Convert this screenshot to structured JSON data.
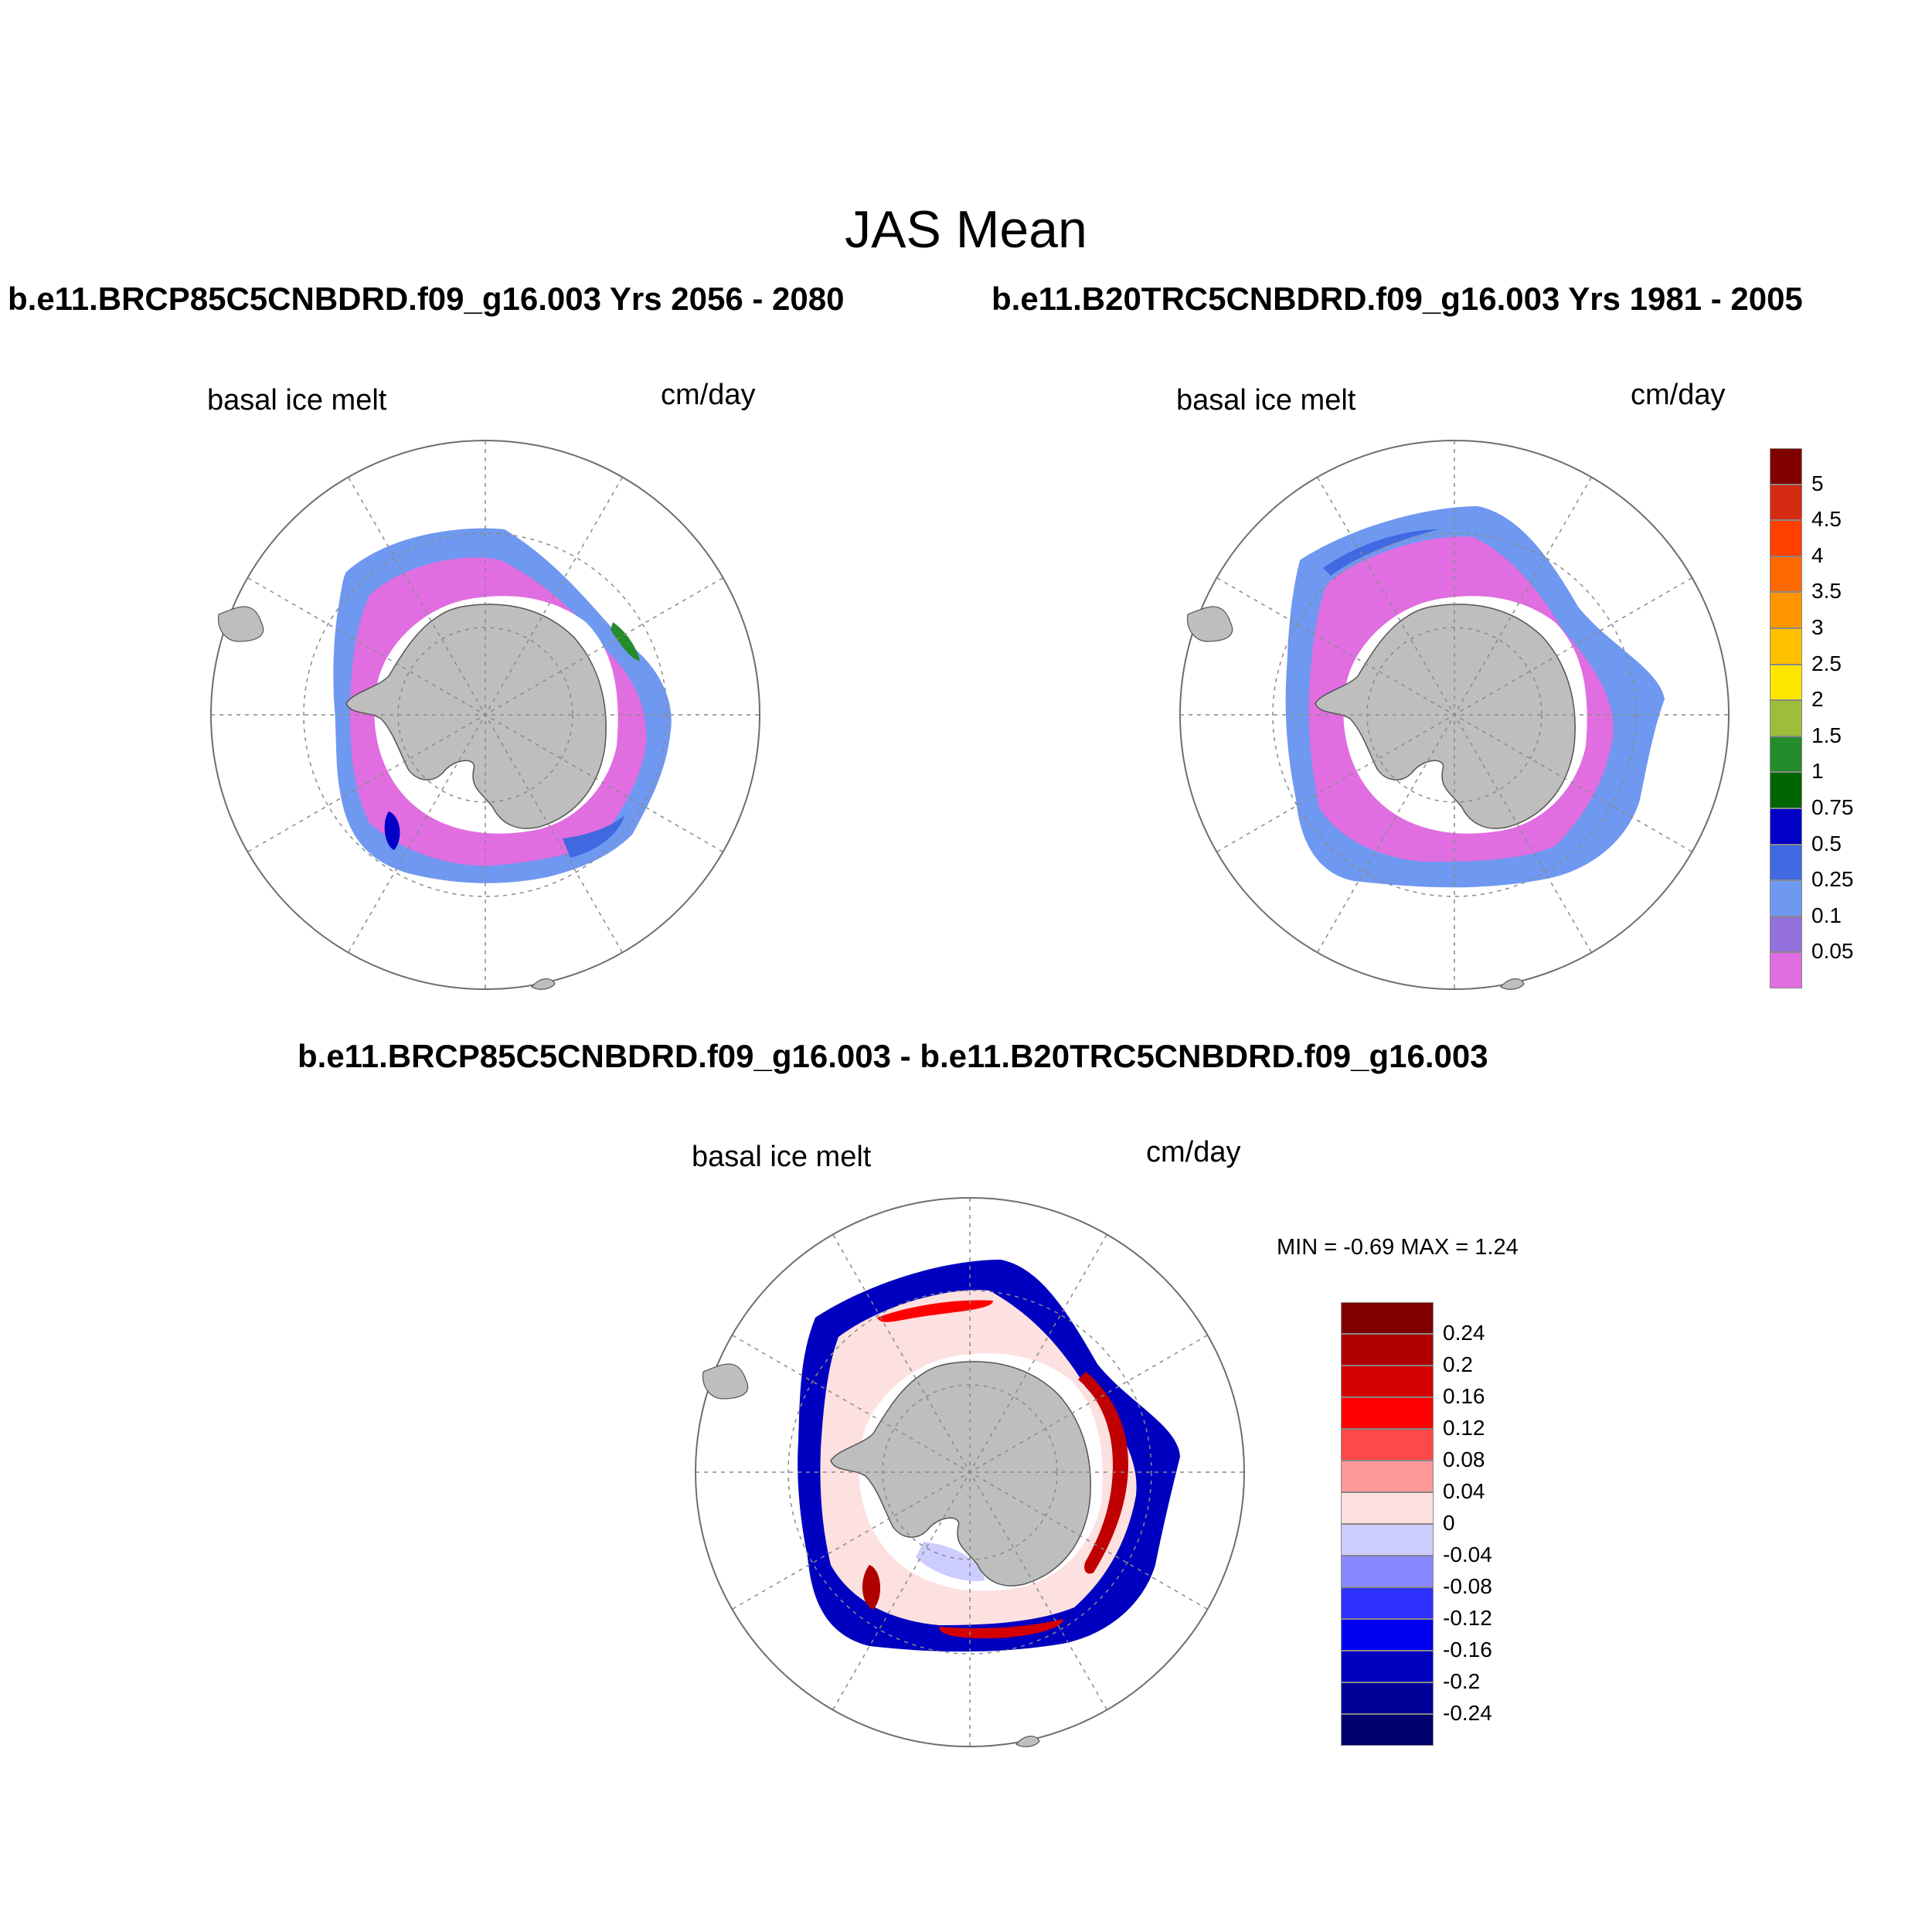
{
  "title": "JAS Mean",
  "panels": [
    {
      "case_label": "b.e11.BRCP85C5CNBDRD.f09_g16.003  Yrs 2056 - 2080",
      "variable": "basal ice melt",
      "units": "cm/day"
    },
    {
      "case_label": "b.e11.B20TRC5CNBDRD.f09_g16.003  Yrs 1981 - 2005",
      "variable": "basal ice melt",
      "units": "cm/day"
    },
    {
      "case_label": "b.e11.BRCP85C5CNBDRD.f09_g16.003 - b.e11.B20TRC5CNBDRD.f09_g16.003",
      "variable": "basal ice melt",
      "units": "cm/day",
      "min_max": "MIN =  -0.69 MAX =   1.24"
    }
  ],
  "colorbar_top": {
    "labels": [
      "5",
      "4.5",
      "4",
      "3.5",
      "3",
      "2.5",
      "2",
      "1.5",
      "1",
      "0.75",
      "0.5",
      "0.25",
      "0.1",
      "0.05"
    ],
    "colors": [
      "#800000",
      "#d42a12",
      "#ff4000",
      "#ff6a00",
      "#ff9500",
      "#ffc000",
      "#ffe600",
      "#9dbe3a",
      "#248c2a",
      "#006400",
      "#0000c8",
      "#4169e1",
      "#6f98f0",
      "#9370db",
      "#e06ee0"
    ]
  },
  "colorbar_diff": {
    "labels": [
      "0.24",
      "0.2",
      "0.16",
      "0.12",
      "0.08",
      "0.04",
      "0",
      "-0.04",
      "-0.08",
      "-0.12",
      "-0.16",
      "-0.2",
      "-0.24"
    ],
    "colors": [
      "#800000",
      "#b00000",
      "#d40000",
      "#ff0000",
      "#ff4848",
      "#ff9898",
      "#fde0e0",
      "#ccccff",
      "#8888ff",
      "#3030ff",
      "#0000f0",
      "#0000c0",
      "#000098",
      "#000070"
    ]
  },
  "colors": {
    "land": "#bebebe",
    "frame": "#6e6e6e",
    "grid": "#8a8a8a"
  }
}
